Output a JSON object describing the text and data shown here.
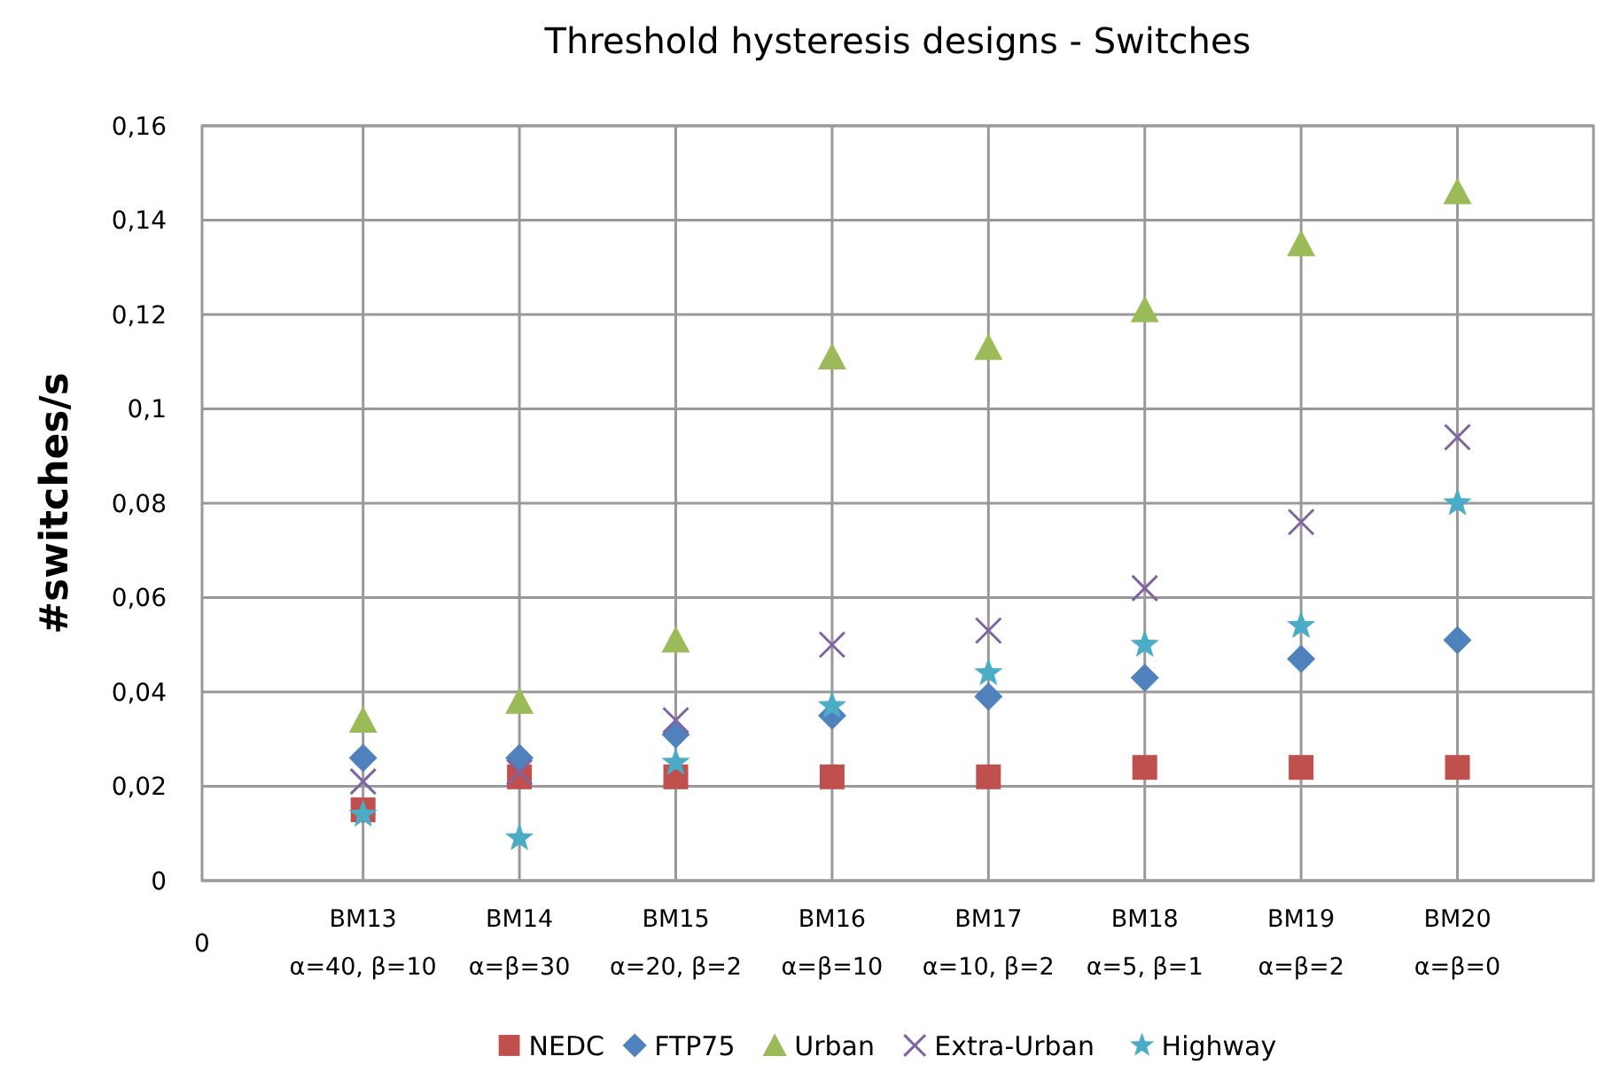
{
  "chart_data": {
    "type": "scatter",
    "title": "Threshold hysteresis designs - Switches",
    "ylabel": "#switches/s",
    "categories": [
      "BM13\nα=40, β=10",
      "BM14\nα=β=30",
      "BM15\nα=20, β=2",
      "BM16\nα=β=10",
      "BM17\nα=10, β=2",
      "BM18\nα=5, β=1",
      "BM19\nα=β=2",
      "BM20\nα=β=0"
    ],
    "series": [
      {
        "name": "NEDC",
        "color": "#c0504d",
        "marker": "square",
        "values": [
          0.015,
          0.022,
          0.022,
          0.022,
          0.022,
          0.024,
          0.024,
          0.024
        ]
      },
      {
        "name": "FTP75",
        "color": "#4f81bd",
        "marker": "diamond",
        "values": [
          0.026,
          0.026,
          0.031,
          0.035,
          0.039,
          0.043,
          0.047,
          0.051
        ]
      },
      {
        "name": "Urban",
        "color": "#9bbb59",
        "marker": "triangle",
        "values": [
          0.034,
          0.038,
          0.051,
          0.111,
          0.113,
          0.121,
          0.135,
          0.146
        ]
      },
      {
        "name": "Extra-Urban",
        "color": "#8064a2",
        "marker": "cross",
        "values": [
          0.021,
          0.023,
          0.034,
          0.05,
          0.053,
          0.062,
          0.076,
          0.094
        ]
      },
      {
        "name": "Highway",
        "color": "#4bacc6",
        "marker": "star",
        "values": [
          0.014,
          0.009,
          0.025,
          0.037,
          0.044,
          0.05,
          0.054,
          0.08
        ]
      }
    ],
    "ylim": [
      0,
      0.16
    ],
    "yticks": [
      0,
      {
        "value": 0.02,
        "label": "0,02"
      },
      {
        "value": 0.04,
        "label": "0,04"
      },
      {
        "value": 0.06,
        "label": "0,06"
      },
      {
        "value": 0.08,
        "label": "0,08"
      },
      {
        "value": 0.1,
        "label": "0,1"
      },
      {
        "value": 0.12,
        "label": "0,12"
      },
      {
        "value": 0.14,
        "label": "0,14"
      },
      {
        "value": 0.16,
        "label": "0,16"
      }
    ],
    "annotations": [
      "0"
    ],
    "grid": true,
    "legend": "bottom"
  }
}
